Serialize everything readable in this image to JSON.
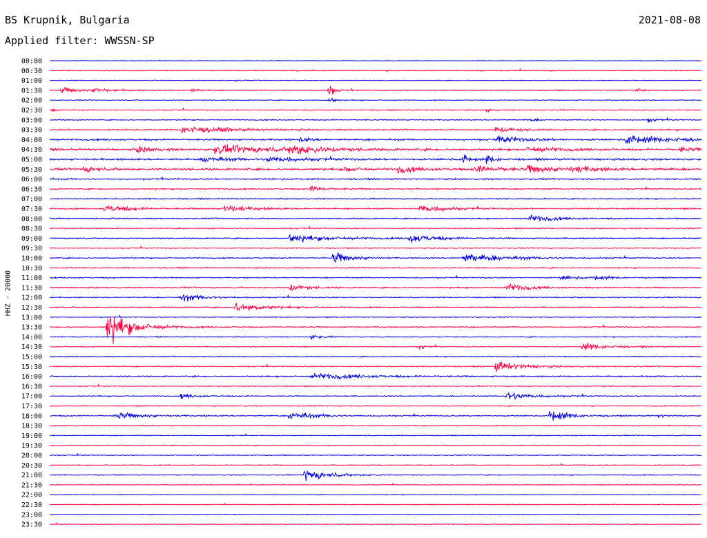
{
  "header": {
    "station": "BS Krupnik, Bulgaria",
    "date": "2021-08-08",
    "filter_label": "Applied filter: WWSSN-SP",
    "channel_label": "HHZ - 20000"
  },
  "colors": {
    "trace_odd": "#0000e0",
    "trace_even": "#ff0040",
    "background": "#ffffff"
  },
  "chart_data": {
    "type": "line",
    "title": "BS Krupnik, Bulgaria",
    "subtitle": "Applied filter: WWSSN-SP",
    "ylabel": "HHZ - 20000",
    "row_labels": [
      "00:00",
      "00:30",
      "01:00",
      "01:30",
      "02:00",
      "02:30",
      "03:00",
      "03:30",
      "04:00",
      "04:30",
      "05:00",
      "05:30",
      "06:00",
      "06:30",
      "07:00",
      "07:30",
      "08:00",
      "08:30",
      "09:00",
      "09:30",
      "10:00",
      "10:30",
      "11:00",
      "11:30",
      "12:00",
      "12:30",
      "13:00",
      "13:30",
      "14:00",
      "14:30",
      "15:00",
      "15:30",
      "16:00",
      "16:30",
      "17:00",
      "17:30",
      "18:00",
      "18:30",
      "19:00",
      "19:30",
      "20:00",
      "20:30",
      "21:00",
      "21:30",
      "22:00",
      "22:30",
      "23:00",
      "23:30"
    ],
    "row_minutes": 30,
    "noise_level": [
      0.4,
      0.6,
      0.5,
      0.7,
      0.6,
      0.7,
      0.7,
      0.9,
      1.2,
      1.4,
      1.3,
      1.5,
      1.0,
      0.9,
      0.8,
      1.0,
      0.8,
      0.8,
      0.8,
      0.7,
      0.8,
      0.8,
      0.8,
      0.9,
      0.8,
      0.8,
      0.7,
      0.8,
      0.7,
      0.7,
      0.7,
      0.8,
      0.9,
      0.7,
      0.7,
      0.7,
      0.8,
      0.7,
      0.6,
      0.6,
      0.6,
      0.6,
      0.6,
      0.6,
      0.5,
      0.5,
      0.5,
      0.5
    ],
    "events": [
      {
        "row": 1,
        "minute": 23.0,
        "amp": 0.7,
        "dur": 0.3
      },
      {
        "row": 2,
        "minute": 8.5,
        "amp": 1.0,
        "dur": 0.3
      },
      {
        "row": 3,
        "minute": 0.5,
        "amp": 4.0,
        "dur": 1.0
      },
      {
        "row": 3,
        "minute": 2.0,
        "amp": 3.0,
        "dur": 1.0
      },
      {
        "row": 3,
        "minute": 6.5,
        "amp": 2.5,
        "dur": 0.4
      },
      {
        "row": 3,
        "minute": 12.8,
        "amp": 12.0,
        "dur": 0.3
      },
      {
        "row": 3,
        "minute": 27.0,
        "amp": 2.0,
        "dur": 0.3
      },
      {
        "row": 4,
        "minute": 12.8,
        "amp": 6.0,
        "dur": 0.3
      },
      {
        "row": 5,
        "minute": 0.1,
        "amp": 2.0,
        "dur": 0.3
      },
      {
        "row": 5,
        "minute": 20.1,
        "amp": 3.0,
        "dur": 0.3
      },
      {
        "row": 6,
        "minute": 22.0,
        "amp": 2.0,
        "dur": 0.6
      },
      {
        "row": 6,
        "minute": 27.5,
        "amp": 3.0,
        "dur": 0.6
      },
      {
        "row": 7,
        "minute": 6.0,
        "amp": 5.0,
        "dur": 2.5
      },
      {
        "row": 7,
        "minute": 20.5,
        "amp": 4.0,
        "dur": 1.2
      },
      {
        "row": 8,
        "minute": 11.5,
        "amp": 3.0,
        "dur": 0.6
      },
      {
        "row": 8,
        "minute": 20.5,
        "amp": 5.0,
        "dur": 1.5
      },
      {
        "row": 8,
        "minute": 26.5,
        "amp": 6.0,
        "dur": 2.5
      },
      {
        "row": 9,
        "minute": 4.0,
        "amp": 4.0,
        "dur": 1.0
      },
      {
        "row": 9,
        "minute": 7.5,
        "amp": 5.0,
        "dur": 4.0
      },
      {
        "row": 9,
        "minute": 11.0,
        "amp": 7.0,
        "dur": 1.5
      },
      {
        "row": 9,
        "minute": 22.0,
        "amp": 4.0,
        "dur": 1.5
      },
      {
        "row": 9,
        "minute": 29.0,
        "amp": 3.0,
        "dur": 1.0
      },
      {
        "row": 10,
        "minute": 7.0,
        "amp": 4.0,
        "dur": 1.5
      },
      {
        "row": 10,
        "minute": 10.0,
        "amp": 4.0,
        "dur": 2.0
      },
      {
        "row": 10,
        "minute": 19.0,
        "amp": 8.0,
        "dur": 0.4
      },
      {
        "row": 10,
        "minute": 20.1,
        "amp": 8.0,
        "dur": 0.4
      },
      {
        "row": 11,
        "minute": 1.5,
        "amp": 4.0,
        "dur": 0.8
      },
      {
        "row": 11,
        "minute": 13.5,
        "amp": 4.0,
        "dur": 0.8
      },
      {
        "row": 11,
        "minute": 16.0,
        "amp": 5.0,
        "dur": 1.0
      },
      {
        "row": 11,
        "minute": 19.5,
        "amp": 5.0,
        "dur": 1.5
      },
      {
        "row": 11,
        "minute": 22.0,
        "amp": 5.0,
        "dur": 1.5
      },
      {
        "row": 11,
        "minute": 24.0,
        "amp": 4.0,
        "dur": 1.5
      },
      {
        "row": 13,
        "minute": 12.0,
        "amp": 4.0,
        "dur": 1.0
      },
      {
        "row": 15,
        "minute": 2.5,
        "amp": 5.0,
        "dur": 1.5
      },
      {
        "row": 15,
        "minute": 8.0,
        "amp": 5.0,
        "dur": 1.5
      },
      {
        "row": 15,
        "minute": 17.0,
        "amp": 6.0,
        "dur": 1.5
      },
      {
        "row": 16,
        "minute": 22.0,
        "amp": 5.0,
        "dur": 1.5
      },
      {
        "row": 18,
        "minute": 11.0,
        "amp": 5.0,
        "dur": 2.5
      },
      {
        "row": 18,
        "minute": 16.5,
        "amp": 6.0,
        "dur": 1.5
      },
      {
        "row": 20,
        "minute": 13.0,
        "amp": 9.0,
        "dur": 1.0
      },
      {
        "row": 20,
        "minute": 19.0,
        "amp": 6.0,
        "dur": 2.5
      },
      {
        "row": 22,
        "minute": 23.5,
        "amp": 4.0,
        "dur": 0.8
      },
      {
        "row": 22,
        "minute": 25.0,
        "amp": 4.0,
        "dur": 0.8
      },
      {
        "row": 23,
        "minute": 11.0,
        "amp": 5.0,
        "dur": 1.0
      },
      {
        "row": 23,
        "minute": 21.0,
        "amp": 6.0,
        "dur": 1.2
      },
      {
        "row": 24,
        "minute": 6.0,
        "amp": 5.0,
        "dur": 1.5
      },
      {
        "row": 25,
        "minute": 8.5,
        "amp": 7.0,
        "dur": 1.5
      },
      {
        "row": 27,
        "minute": 2.6,
        "amp": 22.0,
        "dur": 1.5
      },
      {
        "row": 28,
        "minute": 12.0,
        "amp": 4.0,
        "dur": 0.5
      },
      {
        "row": 29,
        "minute": 17.0,
        "amp": 4.0,
        "dur": 0.3
      },
      {
        "row": 29,
        "minute": 24.5,
        "amp": 5.0,
        "dur": 1.5
      },
      {
        "row": 31,
        "minute": 20.5,
        "amp": 7.0,
        "dur": 1.5
      },
      {
        "row": 32,
        "minute": 12.0,
        "amp": 4.0,
        "dur": 3.0
      },
      {
        "row": 34,
        "minute": 6.0,
        "amp": 3.0,
        "dur": 1.0
      },
      {
        "row": 34,
        "minute": 21.0,
        "amp": 6.0,
        "dur": 1.5
      },
      {
        "row": 36,
        "minute": 3.0,
        "amp": 5.0,
        "dur": 1.5
      },
      {
        "row": 36,
        "minute": 11.0,
        "amp": 6.0,
        "dur": 1.5
      },
      {
        "row": 36,
        "minute": 23.0,
        "amp": 10.0,
        "dur": 1.0
      },
      {
        "row": 36,
        "minute": 28.0,
        "amp": 3.0,
        "dur": 0.3
      },
      {
        "row": 42,
        "minute": 11.7,
        "amp": 8.0,
        "dur": 1.5
      }
    ]
  }
}
